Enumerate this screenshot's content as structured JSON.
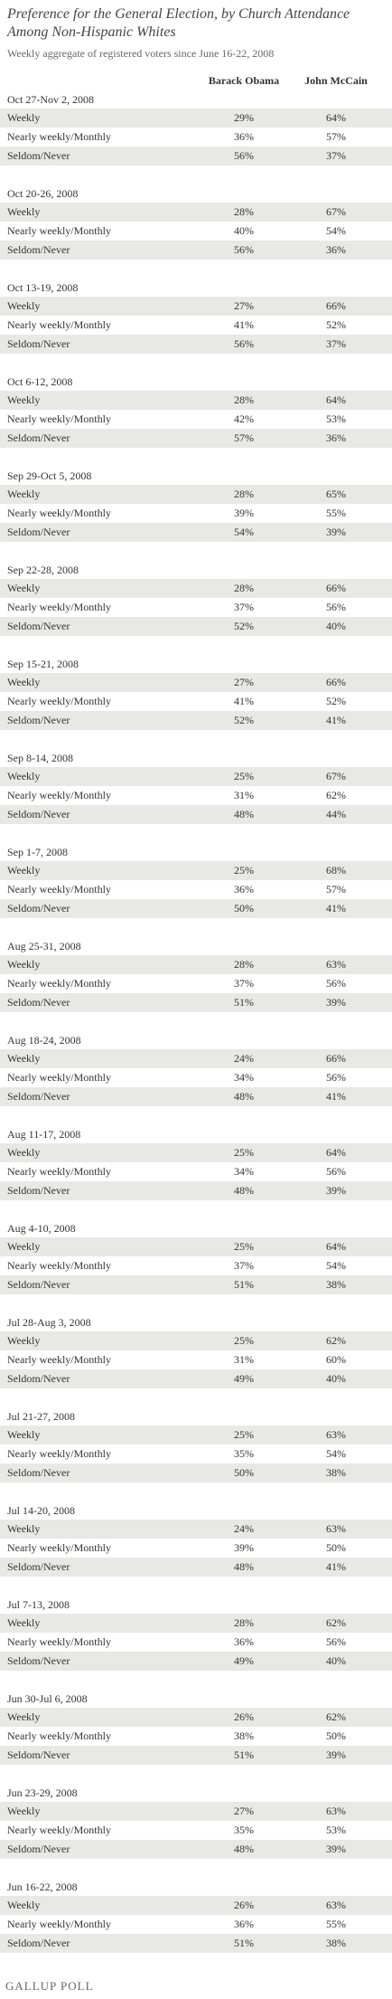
{
  "title": "Preference for the General Election, by Church Attendance Among Non-Hispanic Whites",
  "subtitle": "Weekly aggregate of registered voters since June 16-22, 2008",
  "columns": [
    "Barack Obama",
    "John McCain"
  ],
  "sections": [
    {
      "period": "Oct 27-Nov 2, 2008",
      "rows": [
        [
          "Weekly",
          "29%",
          "64%"
        ],
        [
          "Nearly weekly/Monthly",
          "36%",
          "57%"
        ],
        [
          "Seldom/Never",
          "56%",
          "37%"
        ]
      ]
    },
    {
      "period": "Oct 20-26, 2008",
      "rows": [
        [
          "Weekly",
          "28%",
          "67%"
        ],
        [
          "Nearly weekly/Monthly",
          "40%",
          "54%"
        ],
        [
          "Seldom/Never",
          "56%",
          "36%"
        ]
      ]
    },
    {
      "period": "Oct 13-19, 2008",
      "rows": [
        [
          "Weekly",
          "27%",
          "66%"
        ],
        [
          "Nearly weekly/Monthly",
          "41%",
          "52%"
        ],
        [
          "Seldom/Never",
          "56%",
          "37%"
        ]
      ]
    },
    {
      "period": "Oct 6-12, 2008",
      "rows": [
        [
          "Weekly",
          "28%",
          "64%"
        ],
        [
          "Nearly weekly/Monthly",
          "42%",
          "53%"
        ],
        [
          "Seldom/Never",
          "57%",
          "36%"
        ]
      ]
    },
    {
      "period": "Sep 29-Oct 5, 2008",
      "rows": [
        [
          "Weekly",
          "28%",
          "65%"
        ],
        [
          "Nearly weekly/Monthly",
          "39%",
          "55%"
        ],
        [
          "Seldom/Never",
          "54%",
          "39%"
        ]
      ]
    },
    {
      "period": "Sep 22-28, 2008",
      "rows": [
        [
          "Weekly",
          "28%",
          "66%"
        ],
        [
          "Nearly weekly/Monthly",
          "37%",
          "56%"
        ],
        [
          "Seldom/Never",
          "52%",
          "40%"
        ]
      ]
    },
    {
      "period": "Sep 15-21, 2008",
      "rows": [
        [
          "Weekly",
          "27%",
          "66%"
        ],
        [
          "Nearly weekly/Monthly",
          "41%",
          "52%"
        ],
        [
          "Seldom/Never",
          "52%",
          "41%"
        ]
      ]
    },
    {
      "period": "Sep 8-14, 2008",
      "rows": [
        [
          "Weekly",
          "25%",
          "67%"
        ],
        [
          "Nearly weekly/Monthly",
          "31%",
          "62%"
        ],
        [
          "Seldom/Never",
          "48%",
          "44%"
        ]
      ]
    },
    {
      "period": "Sep 1-7, 2008",
      "rows": [
        [
          "Weekly",
          "25%",
          "68%"
        ],
        [
          "Nearly weekly/Monthly",
          "36%",
          "57%"
        ],
        [
          "Seldom/Never",
          "50%",
          "41%"
        ]
      ]
    },
    {
      "period": "Aug 25-31, 2008",
      "rows": [
        [
          "Weekly",
          "28%",
          "63%"
        ],
        [
          "Nearly weekly/Monthly",
          "37%",
          "56%"
        ],
        [
          "Seldom/Never",
          "51%",
          "39%"
        ]
      ]
    },
    {
      "period": "Aug 18-24, 2008",
      "rows": [
        [
          "Weekly",
          "24%",
          "66%"
        ],
        [
          "Nearly weekly/Monthly",
          "34%",
          "56%"
        ],
        [
          "Seldom/Never",
          "48%",
          "41%"
        ]
      ]
    },
    {
      "period": "Aug 11-17, 2008",
      "rows": [
        [
          "Weekly",
          "25%",
          "64%"
        ],
        [
          "Nearly weekly/Monthly",
          "34%",
          "56%"
        ],
        [
          "Seldom/Never",
          "48%",
          "39%"
        ]
      ]
    },
    {
      "period": "Aug 4-10, 2008",
      "rows": [
        [
          "Weekly",
          "25%",
          "64%"
        ],
        [
          "Nearly weekly/Monthly",
          "37%",
          "54%"
        ],
        [
          "Seldom/Never",
          "51%",
          "38%"
        ]
      ]
    },
    {
      "period": "Jul 28-Aug 3, 2008",
      "rows": [
        [
          "Weekly",
          "25%",
          "62%"
        ],
        [
          "Nearly weekly/Monthly",
          "31%",
          "60%"
        ],
        [
          "Seldom/Never",
          "49%",
          "40%"
        ]
      ]
    },
    {
      "period": "Jul 21-27, 2008",
      "rows": [
        [
          "Weekly",
          "25%",
          "63%"
        ],
        [
          "Nearly weekly/Monthly",
          "35%",
          "54%"
        ],
        [
          "Seldom/Never",
          "50%",
          "38%"
        ]
      ]
    },
    {
      "period": "Jul 14-20, 2008",
      "rows": [
        [
          "Weekly",
          "24%",
          "63%"
        ],
        [
          "Nearly weekly/Monthly",
          "39%",
          "50%"
        ],
        [
          "Seldom/Never",
          "48%",
          "41%"
        ]
      ]
    },
    {
      "period": "Jul 7-13, 2008",
      "rows": [
        [
          "Weekly",
          "28%",
          "62%"
        ],
        [
          "Nearly weekly/Monthly",
          "36%",
          "56%"
        ],
        [
          "Seldom/Never",
          "49%",
          "40%"
        ]
      ]
    },
    {
      "period": "Jun 30-Jul 6, 2008",
      "rows": [
        [
          "Weekly",
          "26%",
          "62%"
        ],
        [
          "Nearly weekly/Monthly",
          "38%",
          "50%"
        ],
        [
          "Seldom/Never",
          "51%",
          "39%"
        ]
      ]
    },
    {
      "period": "Jun 23-29, 2008",
      "rows": [
        [
          "Weekly",
          "27%",
          "63%"
        ],
        [
          "Nearly weekly/Monthly",
          "35%",
          "53%"
        ],
        [
          "Seldom/Never",
          "48%",
          "39%"
        ]
      ]
    },
    {
      "period": "Jun 16-22, 2008",
      "rows": [
        [
          "Weekly",
          "26%",
          "63%"
        ],
        [
          "Nearly weekly/Monthly",
          "36%",
          "55%"
        ],
        [
          "Seldom/Never",
          "51%",
          "38%"
        ]
      ]
    }
  ],
  "footer": "GALLUP POLL"
}
